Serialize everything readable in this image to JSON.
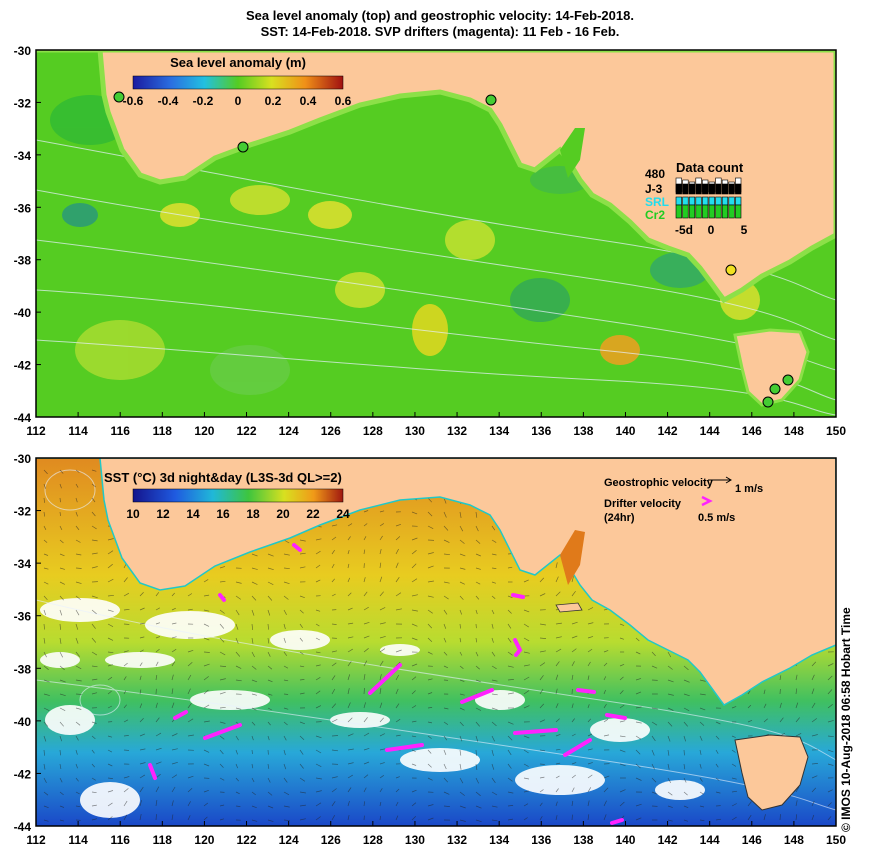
{
  "title_line1": "Sea level anomaly (top) and geostrophic velocity: 14-Feb-2018.",
  "title_line2": "SST: 14-Feb-2018. SVP drifters (magenta): 11 Feb - 16 Feb.",
  "top_panel": {
    "colorbar_title": "Sea level anomaly (m)",
    "colorbar_ticks": [
      "-0.6",
      "-0.4",
      "-0.2",
      "0",
      "0.2",
      "0.4",
      "0.6"
    ],
    "data_count": {
      "title": "Data count",
      "max_label": "480",
      "rows": [
        {
          "label": "J-3",
          "color": "#000000"
        },
        {
          "label": "SRL",
          "color": "#22ddee"
        },
        {
          "label": "Cr2",
          "color": "#22cc22"
        }
      ],
      "x_ticks": [
        "-5d",
        "0",
        "5"
      ]
    },
    "tide_gauge_count": 8
  },
  "bottom_panel": {
    "colorbar_title": "SST (°C) 3d night&day (L3S-3d QL>=2)",
    "colorbar_ticks": [
      "10",
      "12",
      "14",
      "16",
      "18",
      "20",
      "22",
      "24"
    ],
    "geostrophic_label": "Geostrophic velocity",
    "geostrophic_scale": "1 m/s",
    "drifter_label_1": "Drifter velocity",
    "drifter_label_2": "(24hr)",
    "drifter_scale": "0.5 m/s"
  },
  "axes": {
    "lon_ticks": [
      "112",
      "114",
      "116",
      "118",
      "120",
      "122",
      "124",
      "126",
      "128",
      "130",
      "132",
      "134",
      "136",
      "138",
      "140",
      "142",
      "144",
      "146",
      "148",
      "150"
    ],
    "lat_ticks": [
      "-30",
      "-32",
      "-34",
      "-36",
      "-38",
      "-40",
      "-42",
      "-44"
    ]
  },
  "side_label": "© IMOS 10-Aug-2018 06:58 Hobart Time",
  "colors": {
    "land": "#fcc89a",
    "slaBase": "#55cc22",
    "sstWarm": "#e07a1a",
    "sstCold": "#1a4ad0",
    "drifter": "#ff22ff",
    "contour": "#e8f0ff"
  }
}
